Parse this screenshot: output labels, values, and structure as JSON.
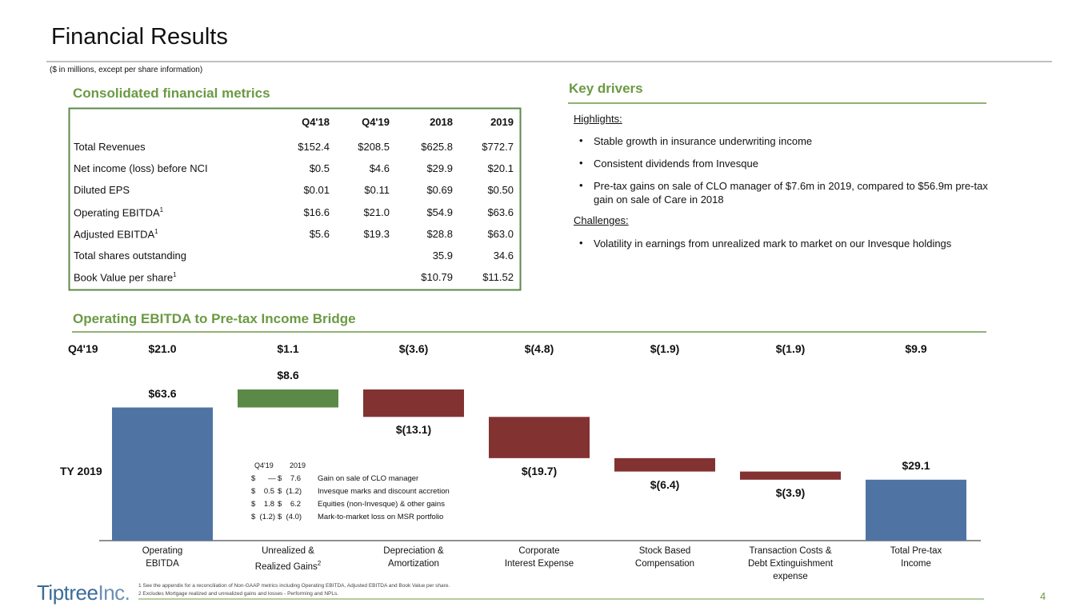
{
  "header": {
    "title": "Financial Results",
    "subtitle": "($ in millions, except per share information)"
  },
  "table": {
    "title": "Consolidated financial metrics",
    "columns": [
      "Q4'18",
      "Q4'19",
      "2018",
      "2019"
    ],
    "rows": [
      {
        "label": "Total Revenues",
        "values": [
          "$152.4",
          "$208.5",
          "$625.8",
          "$772.7"
        ]
      },
      {
        "label": "Net income (loss) before NCI",
        "values": [
          "$0.5",
          "$4.6",
          "$29.9",
          "$20.1"
        ]
      },
      {
        "label": "Diluted EPS",
        "values": [
          "$0.01",
          "$0.11",
          "$0.69",
          "$0.50"
        ]
      },
      {
        "label": "Operating EBITDA",
        "note": "1",
        "values": [
          "$16.6",
          "$21.0",
          "$54.9",
          "$63.6"
        ]
      },
      {
        "label": "Adjusted EBITDA",
        "note": "1",
        "values": [
          "$5.6",
          "$19.3",
          "$28.8",
          "$63.0"
        ]
      },
      {
        "label": "Total shares outstanding",
        "values": [
          null,
          null,
          "35.9",
          "34.6"
        ]
      },
      {
        "label": "Book Value per share",
        "note": "1",
        "values": [
          null,
          null,
          "$10.79",
          "$11.52"
        ]
      }
    ]
  },
  "key_drivers": {
    "title": "Key drivers",
    "sections": [
      {
        "heading": "Highlights:",
        "bullets": [
          "Stable growth in insurance underwriting income",
          "Consistent dividends from Invesque",
          "Pre-tax gains on sale of CLO manager of $7.6m in 2019, compared to $56.9m pre-tax gain on sale of Care in 2018"
        ]
      },
      {
        "heading": "Challenges:",
        "bullets": [
          "Volatility in earnings from unrealized mark to market on our Invesque holdings"
        ]
      }
    ]
  },
  "chart_data": {
    "type": "waterfall",
    "title": "Operating EBITDA to Pre-tax Income Bridge",
    "categories": [
      [
        "Operating",
        "EBITDA"
      ],
      [
        "Unrealized &",
        "Realized Gains"
      ],
      [
        "Depreciation &",
        "Amortization"
      ],
      [
        "Corporate",
        "Interest Expense"
      ],
      [
        "Stock Based",
        "Compensation"
      ],
      [
        "Transaction Costs &",
        "Debt Extinguishment",
        "expense"
      ],
      [
        "Total Pre-tax",
        "Income"
      ]
    ],
    "category_superscripts": [
      null,
      "2",
      null,
      null,
      null,
      null,
      null
    ],
    "q4_label": "Q4'19",
    "q4_value_labels": [
      "$21.0",
      "$1.1",
      "$(3.6)",
      "$(4.8)",
      "$(1.9)",
      "$(1.9)",
      "$9.9"
    ],
    "series_label": "TY 2019",
    "measure": [
      "total",
      "relative",
      "relative",
      "relative",
      "relative",
      "relative",
      "total"
    ],
    "values": [
      63.6,
      8.6,
      -13.1,
      -19.7,
      -6.4,
      -3.9,
      29.1
    ],
    "value_labels": [
      "$63.6",
      "$8.6",
      "$(13.1)",
      "$(19.7)",
      "$(6.4)",
      "$(3.9)",
      "$29.1"
    ],
    "colors": {
      "total": "#4f74a3",
      "increase": "#5b8a48",
      "decrease": "#833232"
    },
    "detail": {
      "columns": [
        "Q4'19",
        "2019"
      ],
      "rows": [
        [
          "$      —",
          "$    7.6",
          "Gain on sale of CLO manager"
        ],
        [
          "$    0.5",
          "$  (1.2)",
          "Invesque marks and discount accretion"
        ],
        [
          "$    1.8",
          "$    6.2",
          "Equities (non-Invesque) & other gains"
        ],
        [
          "$  (1.2)",
          "$  (4.0)",
          "Mark-to-market loss on MSR portfolio"
        ]
      ]
    }
  },
  "footer": {
    "notes": [
      "1 See the appendix for a reconciliation of Non-GAAP metrics including Operating EBITDA, Adjusted EBITDA and Book Value per share.",
      "2 Excludes Mortgage realized and unrealized gains and losses - Performing and NPLs."
    ],
    "logo_main": "Tiptree",
    "logo_suffix": "Inc.",
    "page_number": "4"
  }
}
